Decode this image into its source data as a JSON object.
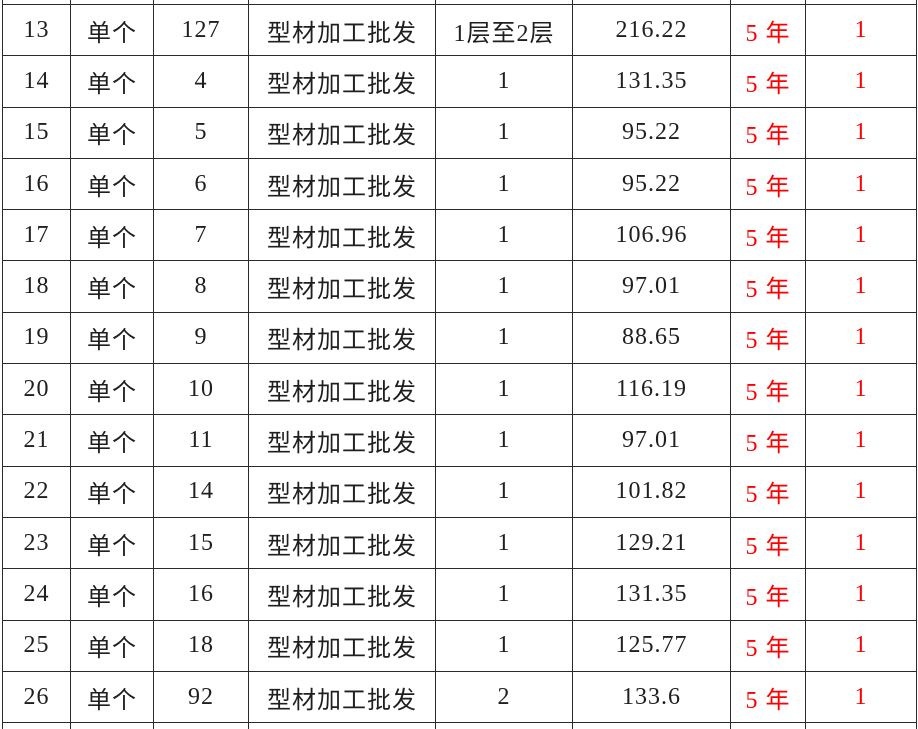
{
  "colors": {
    "background": "#ffffff",
    "border": "#2a2a2a",
    "text": "#1f1f1f",
    "accent_red": "#ff0000"
  },
  "table": {
    "rows": [
      {
        "no": "13",
        "type": "单个",
        "num": "127",
        "biz": "型材加工批发",
        "floor": "1层至2层",
        "value": "216.22",
        "term": "5 年",
        "count": "1"
      },
      {
        "no": "14",
        "type": "单个",
        "num": "4",
        "biz": "型材加工批发",
        "floor": "1",
        "value": "131.35",
        "term": "5 年",
        "count": "1"
      },
      {
        "no": "15",
        "type": "单个",
        "num": "5",
        "biz": "型材加工批发",
        "floor": "1",
        "value": "95.22",
        "term": "5 年",
        "count": "1"
      },
      {
        "no": "16",
        "type": "单个",
        "num": "6",
        "biz": "型材加工批发",
        "floor": "1",
        "value": "95.22",
        "term": "5 年",
        "count": "1"
      },
      {
        "no": "17",
        "type": "单个",
        "num": "7",
        "biz": "型材加工批发",
        "floor": "1",
        "value": "106.96",
        "term": "5 年",
        "count": "1"
      },
      {
        "no": "18",
        "type": "单个",
        "num": "8",
        "biz": "型材加工批发",
        "floor": "1",
        "value": "97.01",
        "term": "5 年",
        "count": "1"
      },
      {
        "no": "19",
        "type": "单个",
        "num": "9",
        "biz": "型材加工批发",
        "floor": "1",
        "value": "88.65",
        "term": "5 年",
        "count": "1"
      },
      {
        "no": "20",
        "type": "单个",
        "num": "10",
        "biz": "型材加工批发",
        "floor": "1",
        "value": "116.19",
        "term": "5 年",
        "count": "1"
      },
      {
        "no": "21",
        "type": "单个",
        "num": "11",
        "biz": "型材加工批发",
        "floor": "1",
        "value": "97.01",
        "term": "5 年",
        "count": "1"
      },
      {
        "no": "22",
        "type": "单个",
        "num": "14",
        "biz": "型材加工批发",
        "floor": "1",
        "value": "101.82",
        "term": "5 年",
        "count": "1"
      },
      {
        "no": "23",
        "type": "单个",
        "num": "15",
        "biz": "型材加工批发",
        "floor": "1",
        "value": "129.21",
        "term": "5 年",
        "count": "1"
      },
      {
        "no": "24",
        "type": "单个",
        "num": "16",
        "biz": "型材加工批发",
        "floor": "1",
        "value": "131.35",
        "term": "5 年",
        "count": "1"
      },
      {
        "no": "25",
        "type": "单个",
        "num": "18",
        "biz": "型材加工批发",
        "floor": "1",
        "value": "125.77",
        "term": "5 年",
        "count": "1"
      },
      {
        "no": "26",
        "type": "单个",
        "num": "92",
        "biz": "型材加工批发",
        "floor": "2",
        "value": "133.6",
        "term": "5 年",
        "count": "1"
      }
    ]
  }
}
